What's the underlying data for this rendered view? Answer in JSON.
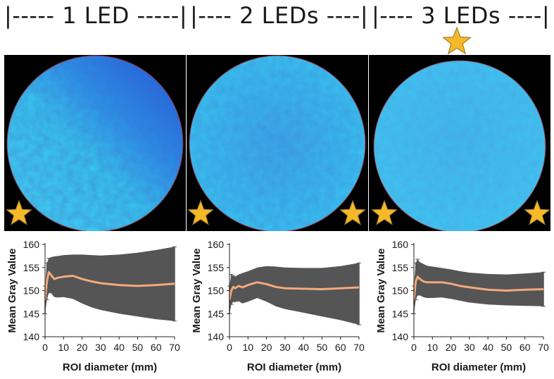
{
  "headers": [
    {
      "text": "|----- 1 LED -----|"
    },
    {
      "text": "|---- 2 LEDs ----|"
    },
    {
      "text": "|---- 3 LEDs ----|"
    }
  ],
  "colors": {
    "background": "#ffffff",
    "image_bg": "#000000",
    "disc_light": "#35c8f0",
    "disc_dark": "#1f4fd8",
    "band": "#555555",
    "mean_line": "#f4a97c",
    "star_fill": "#f5b829",
    "star_stroke": "#9a7a23"
  },
  "chart_data": [
    {
      "type": "line",
      "title": "1 LED",
      "xlabel": "ROI diameter (mm)",
      "ylabel": "Mean Gray Value",
      "xlim": [
        0,
        70
      ],
      "ylim": [
        140,
        160
      ],
      "xticks": [
        0,
        10,
        20,
        30,
        40,
        50,
        60,
        70
      ],
      "yticks": [
        140,
        145,
        150,
        155,
        160
      ],
      "series": [
        {
          "name": "Mean Gray Value",
          "x": [
            0,
            1,
            2,
            3,
            5,
            7,
            10,
            15,
            20,
            25,
            30,
            40,
            50,
            60,
            70
          ],
          "y": [
            148,
            152,
            154,
            153.5,
            152.5,
            152.8,
            153.0,
            153.2,
            152.5,
            152.0,
            151.6,
            151.2,
            151.0,
            151.2,
            151.5
          ],
          "upper": [
            151,
            156,
            157,
            157.2,
            157.4,
            157.5,
            157.7,
            157.8,
            157.8,
            157.7,
            157.6,
            157.8,
            158.2,
            158.8,
            159.5
          ],
          "lower": [
            145,
            148,
            149.5,
            149.6,
            148.6,
            148.5,
            148.6,
            148.2,
            147.2,
            146.4,
            145.8,
            145.0,
            144.4,
            143.8,
            143.4
          ]
        }
      ]
    },
    {
      "type": "line",
      "title": "2 LEDs",
      "xlabel": "ROI diameter (mm)",
      "ylabel": "Mean Gray Value",
      "xlim": [
        0,
        70
      ],
      "ylim": [
        140,
        160
      ],
      "xticks": [
        0,
        10,
        20,
        30,
        40,
        50,
        60,
        70
      ],
      "yticks": [
        140,
        145,
        150,
        155,
        160
      ],
      "series": [
        {
          "name": "Mean Gray Value",
          "x": [
            0,
            1,
            2,
            3,
            5,
            7,
            10,
            15,
            20,
            25,
            30,
            40,
            50,
            60,
            70
          ],
          "y": [
            148,
            150,
            150.8,
            150.5,
            151.0,
            150.7,
            151.2,
            151.8,
            151.4,
            150.8,
            150.5,
            150.4,
            150.3,
            150.5,
            150.7
          ],
          "upper": [
            151,
            153.5,
            153.2,
            153.0,
            153.5,
            153.8,
            154.2,
            155.0,
            155.3,
            155.2,
            155.0,
            154.9,
            154.9,
            155.3,
            156.0
          ],
          "lower": [
            145,
            147.0,
            147.6,
            147.5,
            147.7,
            147.2,
            147.6,
            148.4,
            147.6,
            146.6,
            146.0,
            145.2,
            144.4,
            143.6,
            142.6
          ]
        }
      ]
    },
    {
      "type": "line",
      "title": "3 LEDs",
      "xlabel": "ROI diameter (mm)",
      "ylabel": "Mean Gray Value",
      "xlim": [
        0,
        70
      ],
      "ylim": [
        140,
        160
      ],
      "xticks": [
        0,
        10,
        20,
        30,
        40,
        50,
        60,
        70
      ],
      "yticks": [
        140,
        145,
        150,
        155,
        160
      ],
      "series": [
        {
          "name": "Mean Gray Value",
          "x": [
            0,
            1,
            2,
            3,
            5,
            7,
            10,
            15,
            20,
            25,
            30,
            40,
            50,
            60,
            70
          ],
          "y": [
            148,
            152,
            153.0,
            152.6,
            152.0,
            151.8,
            151.8,
            151.8,
            151.5,
            151.0,
            150.7,
            150.2,
            150.0,
            150.2,
            150.3
          ],
          "upper": [
            151,
            156,
            156.8,
            156.2,
            155.8,
            155.4,
            155.2,
            154.9,
            154.6,
            154.2,
            153.9,
            153.6,
            153.5,
            153.7,
            154.0
          ],
          "lower": [
            145,
            148,
            149.0,
            149.0,
            148.6,
            148.4,
            148.4,
            148.5,
            148.2,
            147.8,
            147.4,
            147.0,
            146.8,
            146.7,
            146.6
          ]
        }
      ]
    }
  ]
}
